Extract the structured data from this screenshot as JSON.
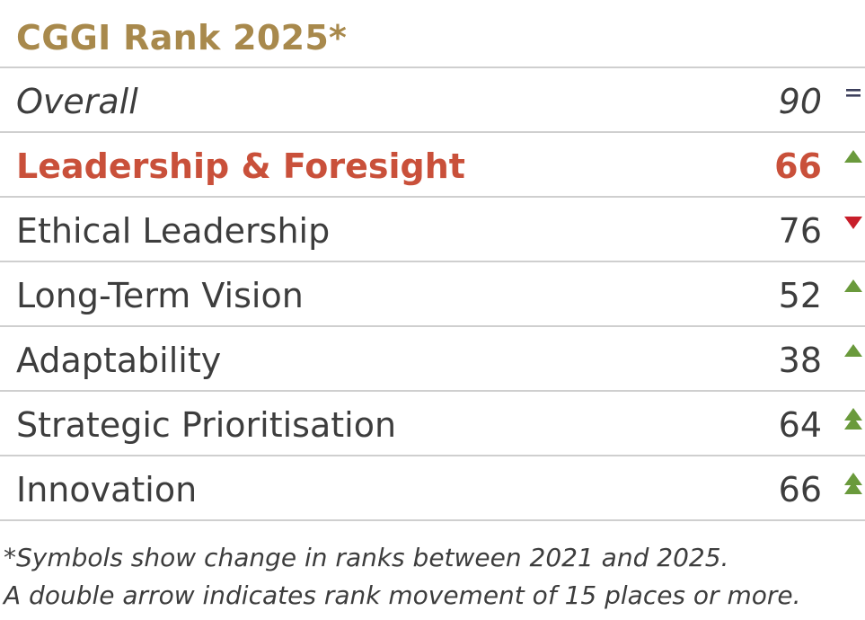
{
  "title": "CGGI Rank 2025*",
  "rows": [
    {
      "label": "Overall",
      "value": "90",
      "symbol": "equal-icon"
    },
    {
      "label": "Leadership & Foresight",
      "value": "66",
      "symbol": "up-arrow-icon"
    },
    {
      "label": "Ethical Leadership",
      "value": "76",
      "symbol": "down-arrow-icon"
    },
    {
      "label": "Long-Term Vision",
      "value": "52",
      "symbol": "up-arrow-icon"
    },
    {
      "label": "Adaptability",
      "value": "38",
      "symbol": "up-arrow-icon"
    },
    {
      "label": "Strategic Prioritisation",
      "value": "64",
      "symbol": "double-up-arrow-icon"
    },
    {
      "label": "Innovation",
      "value": "66",
      "symbol": "double-up-arrow-icon"
    }
  ],
  "footnote": {
    "line1": "*Symbols show change in ranks between 2021 and 2025.",
    "line2": "A double arrow indicates rank movement of 15 places or more."
  },
  "colors": {
    "title": "#a8894c",
    "highlight": "#c9503a",
    "up": "#6a9a3c",
    "down": "#c81e2a",
    "equal": "#3c3f5c",
    "divider": "#cfcfcf"
  }
}
